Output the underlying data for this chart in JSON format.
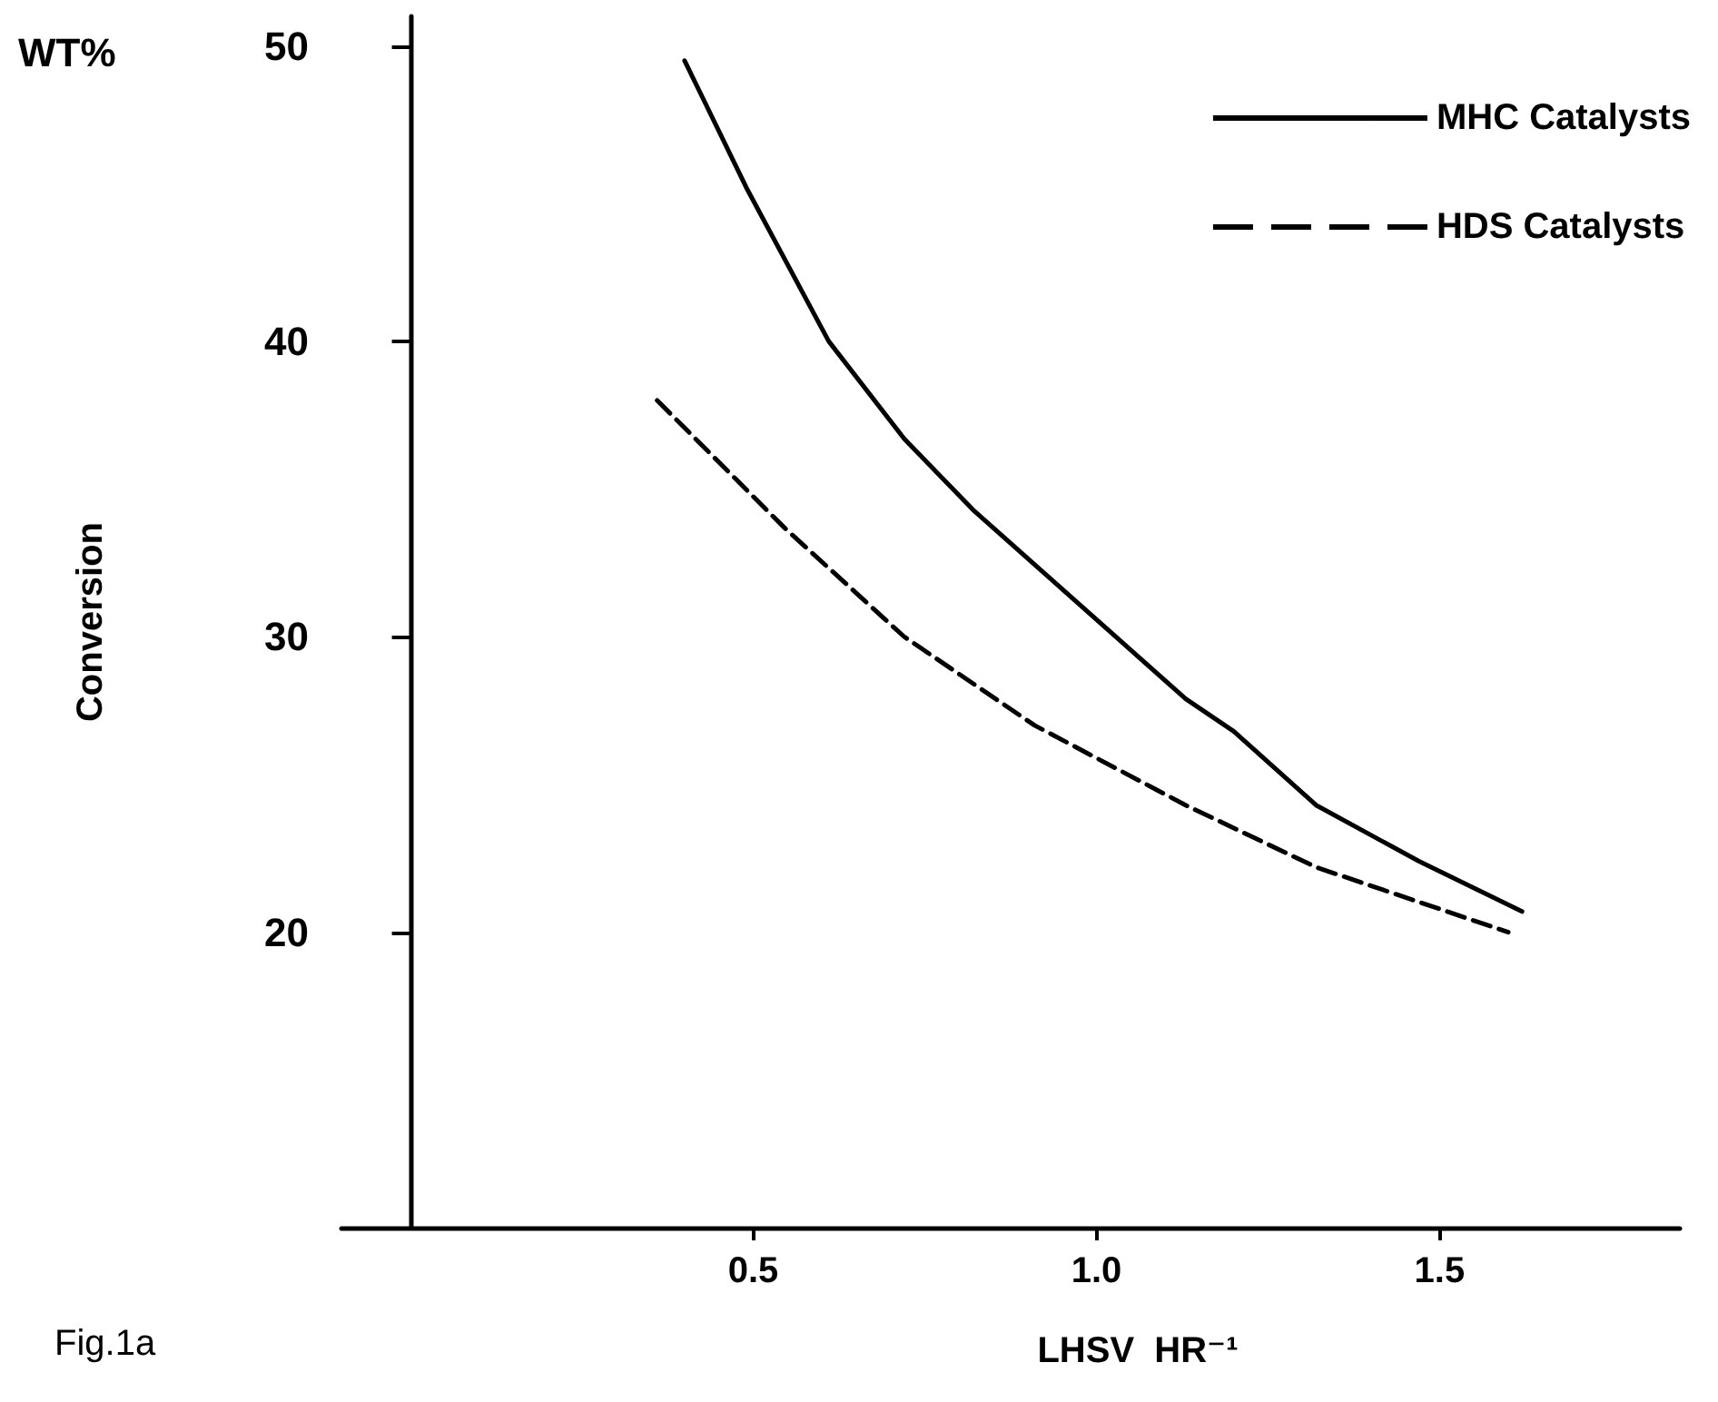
{
  "chart_data": {
    "type": "line",
    "xlabel": "LHSV  HR⁻¹",
    "ylabel": "Conversion",
    "annotations": [
      "WT%",
      "Fig.1a"
    ],
    "xlim": [
      -0.1,
      1.85
    ],
    "xticks": [
      0.5,
      {
        "value": 1.0,
        "label": "1.0"
      },
      1.5
    ],
    "ylim": [
      10,
      51
    ],
    "yticks": [
      20,
      30,
      40,
      50
    ],
    "grid": false,
    "legend": "top right",
    "marker": "none",
    "series": [
      {
        "name": "MHC Catalysts",
        "color": "#000000",
        "line_style": "solid",
        "x": [
          0.4,
          0.49,
          0.61,
          0.72,
          0.82,
          0.97,
          1.13,
          1.2,
          1.32,
          1.47,
          1.62
        ],
        "values": [
          49.5,
          45.2,
          40,
          36.7,
          34.3,
          31.2,
          27.9,
          26.8,
          24.3,
          22.4,
          20.7
        ]
      },
      {
        "name": "HDS Catalysts",
        "color": "#000000",
        "line_style": "dashed",
        "x": [
          0.36,
          0.545,
          0.72,
          0.91,
          1.13,
          1.32,
          1.6
        ],
        "values": [
          38.0,
          33.7,
          30.0,
          27.0,
          24.3,
          22.2,
          20.0
        ]
      }
    ]
  }
}
